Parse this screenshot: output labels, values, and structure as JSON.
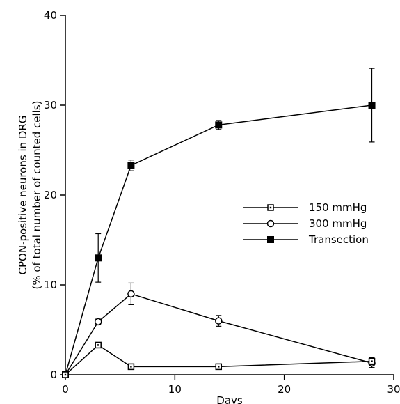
{
  "chart_data": {
    "type": "line",
    "xlabel": "Days",
    "ylabel": "CPON-positive neurons in DRG",
    "ylabel_sub": "(% of total number of counted cells)",
    "xlim": [
      0,
      30
    ],
    "ylim": [
      0,
      40
    ],
    "xticks": [
      0,
      10,
      20,
      30
    ],
    "yticks": [
      0,
      10,
      20,
      30,
      40
    ],
    "grid": false,
    "legend_position": "center-right",
    "series": [
      {
        "name": "150 mmHg",
        "marker": "open-square",
        "points": [
          {
            "x": 0,
            "y": 0,
            "err": 0
          },
          {
            "x": 3,
            "y": 3.3,
            "err": 0.2
          },
          {
            "x": 6,
            "y": 0.9,
            "err": 0.1
          },
          {
            "x": 14,
            "y": 0.9,
            "err": 0.3
          },
          {
            "x": 28,
            "y": 1.5,
            "err": 0.4
          }
        ]
      },
      {
        "name": "300 mmHg",
        "marker": "open-circle",
        "points": [
          {
            "x": 0,
            "y": 0,
            "err": 0
          },
          {
            "x": 3,
            "y": 5.9,
            "err": 0.3
          },
          {
            "x": 6,
            "y": 9.0,
            "err": 1.2
          },
          {
            "x": 14,
            "y": 6.0,
            "err": 0.6
          },
          {
            "x": 28,
            "y": 1.3,
            "err": 0.5
          }
        ]
      },
      {
        "name": "Transection",
        "marker": "filled-square",
        "points": [
          {
            "x": 0,
            "y": 0,
            "err": 0
          },
          {
            "x": 3,
            "y": 13.0,
            "err": 2.7
          },
          {
            "x": 6,
            "y": 23.3,
            "err": 0.6
          },
          {
            "x": 14,
            "y": 27.8,
            "err": 0.5
          },
          {
            "x": 28,
            "y": 30.0,
            "err": 4.1
          }
        ]
      }
    ]
  }
}
